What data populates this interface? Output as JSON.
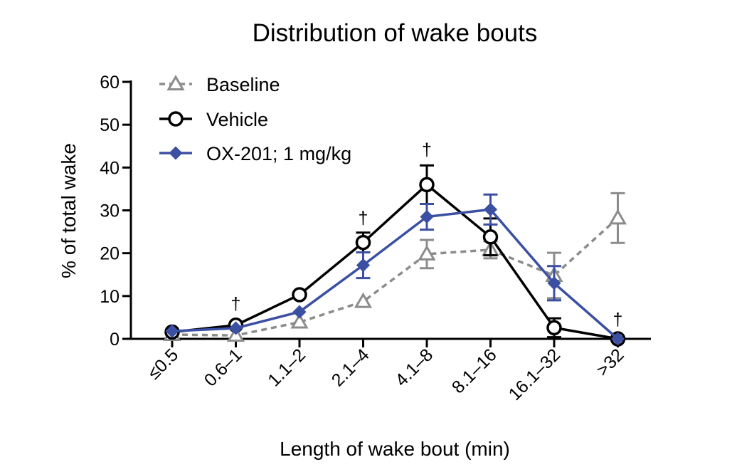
{
  "chart_data": {
    "type": "line",
    "title": "Distribution of wake bouts",
    "xlabel": "Length of wake bout (min)",
    "ylabel": "% of total wake",
    "ylim": [
      0,
      60
    ],
    "yticks": [
      0,
      10,
      20,
      30,
      40,
      50,
      60
    ],
    "categories": [
      "≤0.5",
      "0.6–1",
      "1.1–2",
      "2.1–4",
      "4.1–8",
      "8.1–16",
      "16.1–32",
      ">32"
    ],
    "grid": false,
    "legend_position": "top-left",
    "series": [
      {
        "name": "Baseline",
        "color": "#8c8c8c",
        "marker": "triangle-open",
        "line_style": "dashed",
        "values": [
          1.0,
          0.8,
          3.9,
          8.7,
          19.8,
          20.8,
          14.8,
          28.2
        ],
        "errors": [
          0,
          0,
          0,
          0,
          3.3,
          2.0,
          5.3,
          5.8
        ]
      },
      {
        "name": "Vehicle",
        "color": "#000000",
        "marker": "circle-open",
        "line_style": "solid",
        "values": [
          1.6,
          3.2,
          10.3,
          22.5,
          36.0,
          23.8,
          2.6,
          0.0
        ],
        "errors": [
          0,
          0,
          0,
          2.3,
          4.5,
          4.3,
          2.2,
          0
        ]
      },
      {
        "name": "OX-201; 1 mg/kg",
        "color": "#3b4fa3",
        "marker": "diamond-filled",
        "line_style": "solid",
        "values": [
          1.8,
          2.5,
          6.3,
          17.2,
          28.5,
          30.2,
          13.0,
          0.0
        ],
        "errors": [
          0,
          0,
          0,
          3.0,
          3.0,
          3.5,
          4.0,
          0
        ]
      }
    ],
    "annotations": [
      {
        "category_index": 1,
        "text": "†",
        "y": 8.5
      },
      {
        "category_index": 3,
        "text": "†",
        "y": 28.5
      },
      {
        "category_index": 4,
        "text": "†",
        "y": 44.5
      },
      {
        "category_index": 7,
        "text": "†",
        "y": 4.8
      }
    ]
  }
}
